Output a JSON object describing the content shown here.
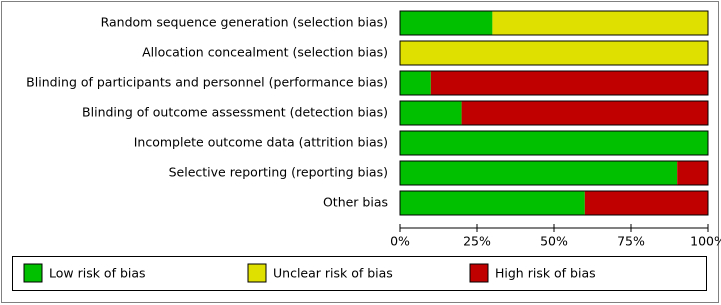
{
  "chart_data": {
    "type": "stacked-bar-horizontal",
    "categories": [
      "Random sequence generation (selection bias)",
      "Allocation concealment (selection bias)",
      "Blinding of participants and personnel (performance bias)",
      "Blinding of outcome assessment (detection bias)",
      "Incomplete outcome data (attrition bias)",
      "Selective reporting (reporting bias)",
      "Other bias"
    ],
    "series": [
      {
        "name": "Low risk of bias",
        "color": "#00c000",
        "values": [
          30,
          0,
          10,
          20,
          100,
          90,
          60
        ]
      },
      {
        "name": "Unclear risk of bias",
        "color": "#e0e000",
        "values": [
          70,
          100,
          0,
          0,
          0,
          0,
          0
        ]
      },
      {
        "name": "High risk of bias",
        "color": "#c00000",
        "values": [
          0,
          0,
          90,
          80,
          0,
          10,
          40
        ]
      }
    ],
    "xlim": [
      0,
      100
    ],
    "xticks": [
      {
        "value": 0,
        "label": "0%"
      },
      {
        "value": 25,
        "label": "25%"
      },
      {
        "value": 50,
        "label": "50%"
      },
      {
        "value": 75,
        "label": "75%"
      },
      {
        "value": 100,
        "label": "100%"
      }
    ]
  }
}
